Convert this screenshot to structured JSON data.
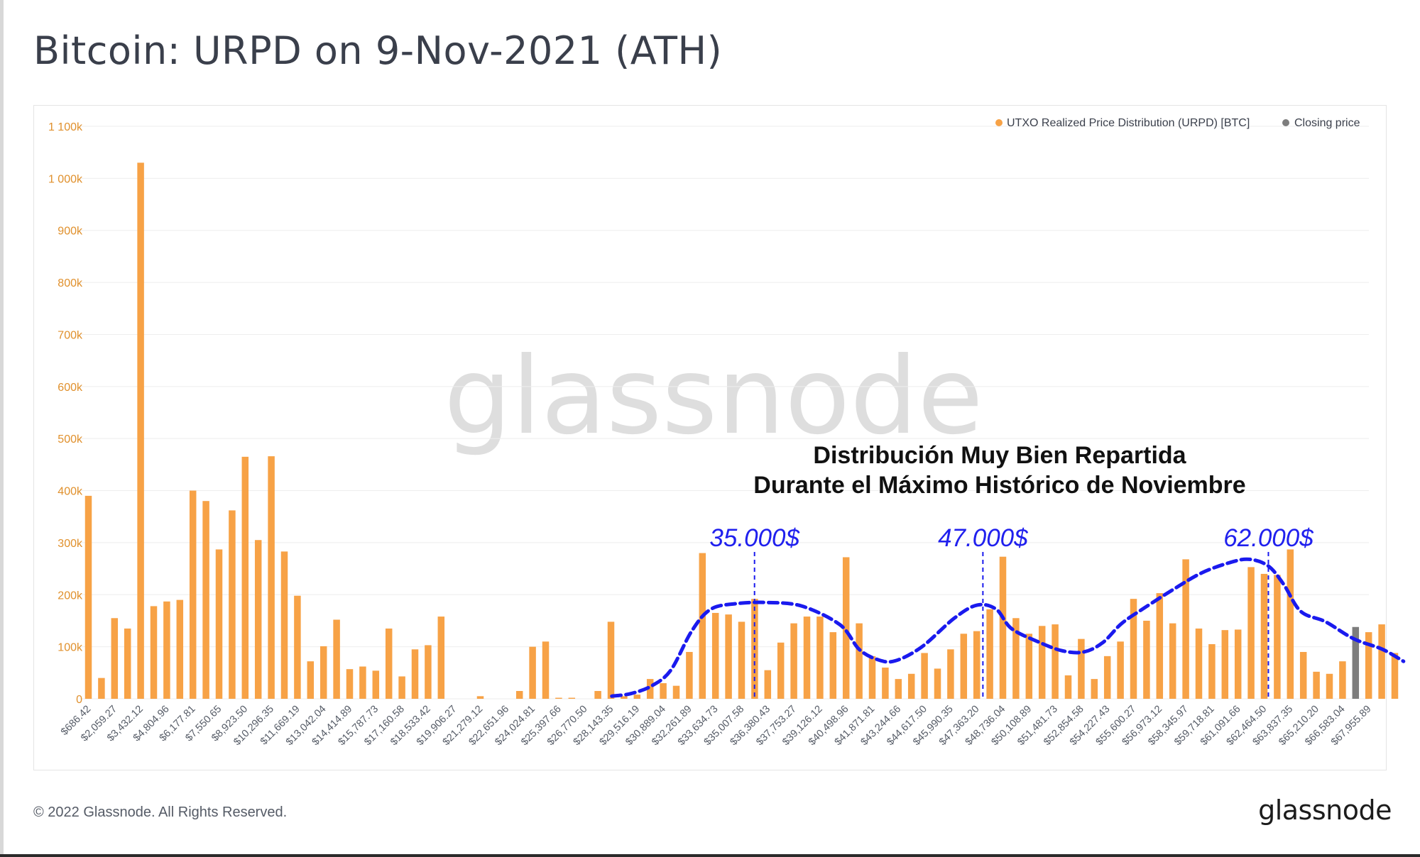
{
  "page": {
    "title": "Bitcoin: URPD on 9-Nov-2021 (ATH)",
    "copyright": "© 2022 Glassnode. All Rights Reserved.",
    "logo": "glassnode",
    "watermark": "glassnode"
  },
  "colors": {
    "bar": "#f7a246",
    "closing_bar": "#7d7d7d",
    "axis_text": "#e0902c",
    "tick_text": "#555b66",
    "grid": "#eeeeee",
    "curve": "#1a1aee",
    "annotation_text": "#2020ee"
  },
  "chart_data": {
    "type": "bar",
    "legend_position": "top-right",
    "legend": [
      {
        "label": "UTXO Realized Price Distribution (URPD) [BTC]",
        "color": "#f7a246"
      },
      {
        "label": "Closing price",
        "color": "#7d7d7d"
      }
    ],
    "ylim": [
      0,
      1100000
    ],
    "y_ticks": [
      {
        "value": 0,
        "label": "0"
      },
      {
        "value": 100000,
        "label": "100k"
      },
      {
        "value": 200000,
        "label": "200k"
      },
      {
        "value": 300000,
        "label": "300k"
      },
      {
        "value": 400000,
        "label": "400k"
      },
      {
        "value": 500000,
        "label": "500k"
      },
      {
        "value": 600000,
        "label": "600k"
      },
      {
        "value": 700000,
        "label": "700k"
      },
      {
        "value": 800000,
        "label": "800k"
      },
      {
        "value": 900000,
        "label": "900k"
      },
      {
        "value": 1000000,
        "label": "1 000k"
      },
      {
        "value": 1100000,
        "label": "1 100k"
      }
    ],
    "x_tick_labels": [
      "$686.42",
      "$2,059.27",
      "$3,432.12",
      "$4,804.96",
      "$6,177.81",
      "$7,550.65",
      "$8,923.50",
      "$10,296.35",
      "$11,669.19",
      "$13,042.04",
      "$14,414.89",
      "$15,787.73",
      "$17,160.58",
      "$18,533.42",
      "$19,906.27",
      "$21,279.12",
      "$22,651.96",
      "$24,024.81",
      "$25,397.66",
      "$26,770.50",
      "$28,143.35",
      "$29,516.19",
      "$30,889.04",
      "$32,261.89",
      "$33,634.73",
      "$35,007.58",
      "$36,380.43",
      "$37,753.27",
      "$39,126.12",
      "$40,498.96",
      "$41,871.81",
      "$43,244.66",
      "$44,617.50",
      "$45,990.35",
      "$47,363.20",
      "$48,736.04",
      "$50,108.89",
      "$51,481.73",
      "$52,854.58",
      "$54,227.43",
      "$55,600.27",
      "$56,973.12",
      "$58,345.97",
      "$59,718.81",
      "$61,091.66",
      "$62,464.50",
      "$63,837.35",
      "$65,210.20",
      "$66,583.04",
      "$67,955.89"
    ],
    "bin_start": 0,
    "bin_width": 686.42,
    "closing_bin_index": 97,
    "values": [
      390000,
      40000,
      155000,
      135000,
      1030000,
      178000,
      187000,
      190000,
      400000,
      380000,
      287000,
      362000,
      465000,
      305000,
      466000,
      283000,
      198000,
      72000,
      101000,
      152000,
      57000,
      62000,
      54000,
      135000,
      43000,
      95000,
      103000,
      158000,
      0,
      0,
      5000,
      0,
      0,
      15000,
      100000,
      110000,
      2000,
      2000,
      0,
      15000,
      148000,
      5000,
      8000,
      38000,
      30000,
      25000,
      90000,
      280000,
      165000,
      162000,
      148000,
      192000,
      55000,
      108000,
      145000,
      158000,
      158000,
      128000,
      272000,
      145000,
      82000,
      60000,
      38000,
      48000,
      88000,
      58000,
      95000,
      125000,
      130000,
      172000,
      273000,
      155000,
      125000,
      140000,
      143000,
      45000,
      115000,
      38000,
      82000,
      110000,
      192000,
      150000,
      203000,
      145000,
      268000,
      135000,
      105000,
      132000,
      133000,
      253000,
      240000,
      238000,
      287000,
      90000,
      52000,
      48000,
      72000,
      138000,
      128000,
      143000,
      88000
    ],
    "annotations": {
      "headline_lines": [
        "Distribución Muy Bien Repartida",
        "Durante el Máximo Histórico de Noviembre"
      ],
      "peak_labels": [
        {
          "label": "35.000$",
          "price": 35000
        },
        {
          "label": "47.000$",
          "price": 47000
        },
        {
          "label": "62.000$",
          "price": 62000
        }
      ]
    },
    "curve_points": [
      {
        "price": 27500,
        "value": 5000
      },
      {
        "price": 28500,
        "value": 10000
      },
      {
        "price": 29600,
        "value": 25000
      },
      {
        "price": 30600,
        "value": 55000
      },
      {
        "price": 31700,
        "value": 130000
      },
      {
        "price": 32700,
        "value": 172000
      },
      {
        "price": 34100,
        "value": 183000
      },
      {
        "price": 35700,
        "value": 185000
      },
      {
        "price": 37500,
        "value": 178000
      },
      {
        "price": 39500,
        "value": 142000
      },
      {
        "price": 40500,
        "value": 95000
      },
      {
        "price": 41500,
        "value": 75000
      },
      {
        "price": 42400,
        "value": 73000
      },
      {
        "price": 43800,
        "value": 100000
      },
      {
        "price": 45500,
        "value": 155000
      },
      {
        "price": 46700,
        "value": 180000
      },
      {
        "price": 47700,
        "value": 172000
      },
      {
        "price": 48500,
        "value": 135000
      },
      {
        "price": 50000,
        "value": 108000
      },
      {
        "price": 51200,
        "value": 92000
      },
      {
        "price": 52300,
        "value": 90000
      },
      {
        "price": 53300,
        "value": 108000
      },
      {
        "price": 54300,
        "value": 145000
      },
      {
        "price": 55500,
        "value": 175000
      },
      {
        "price": 57000,
        "value": 210000
      },
      {
        "price": 58500,
        "value": 242000
      },
      {
        "price": 60000,
        "value": 262000
      },
      {
        "price": 61000,
        "value": 268000
      },
      {
        "price": 62000,
        "value": 255000
      },
      {
        "price": 62800,
        "value": 220000
      },
      {
        "price": 63700,
        "value": 168000
      },
      {
        "price": 65000,
        "value": 148000
      },
      {
        "price": 66500,
        "value": 115000
      },
      {
        "price": 68000,
        "value": 95000
      },
      {
        "price": 69100,
        "value": 72000
      }
    ]
  }
}
